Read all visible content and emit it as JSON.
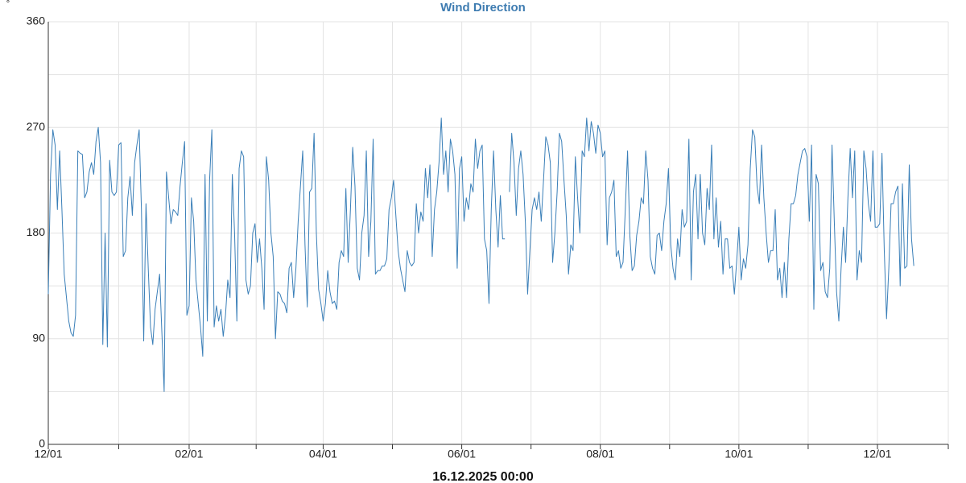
{
  "chart_data": {
    "type": "line",
    "title": "Wind Direction",
    "y_unit": "°",
    "x_label": "16.12.2025 00:00",
    "categories": [
      "12/01",
      null,
      null,
      null,
      null,
      null,
      null,
      null,
      null,
      null,
      null,
      null,
      null,
      null,
      null,
      null,
      null,
      null,
      null,
      null,
      null,
      null,
      null,
      null,
      null,
      null,
      null,
      null,
      null,
      null,
      null,
      null,
      null,
      null,
      null,
      null,
      null,
      null,
      null,
      null,
      null,
      null,
      null,
      null,
      null,
      null,
      null,
      null,
      null,
      null,
      null,
      null,
      null,
      null,
      null,
      null,
      null,
      null,
      null,
      null,
      null,
      null,
      "02/01",
      null,
      null,
      null,
      null,
      null,
      null,
      null,
      null,
      null,
      null,
      null,
      null,
      null,
      null,
      null,
      null,
      null,
      null,
      null,
      null,
      null,
      null,
      null,
      null,
      null,
      null,
      null,
      null,
      null,
      null,
      null,
      null,
      null,
      null,
      null,
      null,
      null,
      null,
      null,
      null,
      null,
      null,
      null,
      null,
      null,
      null,
      null,
      null,
      null,
      null,
      null,
      null,
      null,
      null,
      null,
      null,
      null,
      null,
      "04/01",
      null,
      null,
      null,
      null,
      null,
      null,
      null,
      null,
      null,
      null,
      null,
      null,
      null,
      null,
      null,
      null,
      null,
      null,
      null,
      null,
      null,
      null,
      null,
      null,
      null,
      null,
      null,
      null,
      null,
      null,
      null,
      null,
      null,
      null,
      null,
      null,
      null,
      null,
      null,
      null,
      null,
      null,
      null,
      null,
      null,
      null,
      null,
      null,
      null,
      null,
      null,
      null,
      null,
      null,
      null,
      null,
      null,
      null,
      null,
      null,
      "06/01",
      null,
      null,
      null,
      null,
      null,
      null,
      null,
      null,
      null,
      null,
      null,
      null,
      null,
      null,
      null,
      null,
      null,
      null,
      null,
      null,
      null,
      null,
      null,
      null,
      null,
      null,
      null,
      null,
      null,
      null,
      null,
      null,
      null,
      null,
      null,
      null,
      null,
      null,
      null,
      null,
      null,
      null,
      null,
      null,
      null,
      null,
      null,
      null,
      null,
      null,
      null,
      null,
      null,
      null,
      null,
      null,
      null,
      null,
      null,
      null,
      "08/01",
      null,
      null,
      null,
      null,
      null,
      null,
      null,
      null,
      null,
      null,
      null,
      null,
      null,
      null,
      null,
      null,
      null,
      null,
      null,
      null,
      null,
      null,
      null,
      null,
      null,
      null,
      null,
      null,
      null,
      null,
      null,
      null,
      null,
      null,
      null,
      null,
      null,
      null,
      null,
      null,
      null,
      null,
      null,
      null,
      null,
      null,
      null,
      null,
      null,
      null,
      null,
      null,
      null,
      null,
      null,
      null,
      null,
      null,
      null,
      null,
      "10/01",
      null,
      null,
      null,
      null,
      null,
      null,
      null,
      null,
      null,
      null,
      null,
      null,
      null,
      null,
      null,
      null,
      null,
      null,
      null,
      null,
      null,
      null,
      null,
      null,
      null,
      null,
      null,
      null,
      null,
      null,
      null,
      null,
      null,
      null,
      null,
      null,
      null,
      null,
      null,
      null,
      null,
      null,
      null,
      null,
      null,
      null,
      null,
      null,
      null,
      null,
      null,
      null,
      null,
      null,
      null,
      null,
      null,
      null,
      null,
      null,
      "12/01",
      null,
      null,
      null,
      null,
      null,
      null,
      null,
      null,
      null,
      null,
      null,
      null,
      null,
      null,
      null,
      null
    ],
    "series": [
      {
        "name": "Wind Direction",
        "color": "#3a7fb8",
        "values": [
          128,
          230,
          268,
          255,
          200,
          250,
          200,
          145,
          125,
          105,
          95,
          92,
          110,
          250,
          248,
          247,
          210,
          215,
          232,
          240,
          230,
          258,
          270,
          240,
          85,
          180,
          83,
          242,
          215,
          212,
          215,
          255,
          257,
          160,
          165,
          210,
          228,
          195,
          240,
          255,
          268,
          200,
          88,
          205,
          150,
          100,
          85,
          115,
          130,
          145,
          95,
          45,
          232,
          210,
          188,
          200,
          198,
          195,
          220,
          240,
          258,
          110,
          118,
          210,
          190,
          140,
          120,
          100,
          75,
          230,
          105,
          225,
          268,
          100,
          118,
          105,
          115,
          92,
          110,
          140,
          125,
          230,
          180,
          105,
          235,
          250,
          245,
          140,
          128,
          135,
          180,
          188,
          155,
          175,
          150,
          115,
          245,
          225,
          180,
          160,
          90,
          130,
          128,
          122,
          120,
          112,
          150,
          155,
          125,
          150,
          190,
          220,
          250,
          170,
          117,
          215,
          218,
          265,
          180,
          132,
          120,
          105,
          120,
          148,
          130,
          120,
          122,
          115,
          155,
          165,
          160,
          218,
          155,
          200,
          253,
          220,
          150,
          140,
          180,
          195,
          250,
          160,
          190,
          260,
          145,
          148,
          148,
          152,
          152,
          158,
          200,
          210,
          225,
          195,
          165,
          150,
          140,
          130,
          165,
          155,
          152,
          155,
          205,
          180,
          198,
          190,
          235,
          210,
          238,
          160,
          200,
          215,
          240,
          278,
          230,
          250,
          215,
          260,
          250,
          230,
          150,
          235,
          245,
          190,
          210,
          200,
          222,
          215,
          260,
          235,
          250,
          255,
          175,
          165,
          120,
          200,
          250,
          200,
          168,
          212,
          175,
          175,
          null,
          215,
          265,
          240,
          195,
          235,
          250,
          230,
          190,
          128,
          165,
          200,
          210,
          200,
          215,
          190,
          225,
          262,
          255,
          240,
          155,
          180,
          215,
          265,
          258,
          225,
          195,
          145,
          170,
          165,
          245,
          210,
          180,
          250,
          245,
          278,
          250,
          275,
          265,
          248,
          272,
          265,
          245,
          250,
          170,
          210,
          215,
          225,
          160,
          165,
          150,
          155,
          200,
          250,
          178,
          148,
          152,
          178,
          190,
          210,
          205,
          250,
          225,
          160,
          150,
          145,
          178,
          180,
          165,
          190,
          205,
          235,
          170,
          150,
          140,
          175,
          160,
          200,
          185,
          190,
          260,
          140,
          215,
          230,
          175,
          230,
          180,
          170,
          218,
          200,
          255,
          175,
          210,
          168,
          190,
          145,
          175,
          175,
          150,
          152,
          128,
          155,
          185,
          140,
          158,
          150,
          170,
          235,
          268,
          262,
          220,
          205,
          255,
          210,
          180,
          155,
          165,
          165,
          200,
          140,
          150,
          125,
          155,
          125,
          175,
          205,
          205,
          212,
          230,
          240,
          250,
          252,
          245,
          190,
          255,
          115,
          230,
          222,
          148,
          155,
          130,
          125,
          150,
          255,
          190,
          130,
          105,
          150,
          185,
          155,
          210,
          252,
          210,
          250,
          140,
          165,
          155,
          250,
          235,
          205,
          190,
          250,
          185,
          185,
          188,
          248,
          165,
          107,
          150,
          205,
          205,
          215,
          220,
          135,
          222,
          150,
          152,
          238,
          175,
          152
        ]
      }
    ],
    "ylim": [
      0,
      360
    ],
    "yticks": [
      0,
      90,
      180,
      270,
      360
    ],
    "grid": true
  }
}
